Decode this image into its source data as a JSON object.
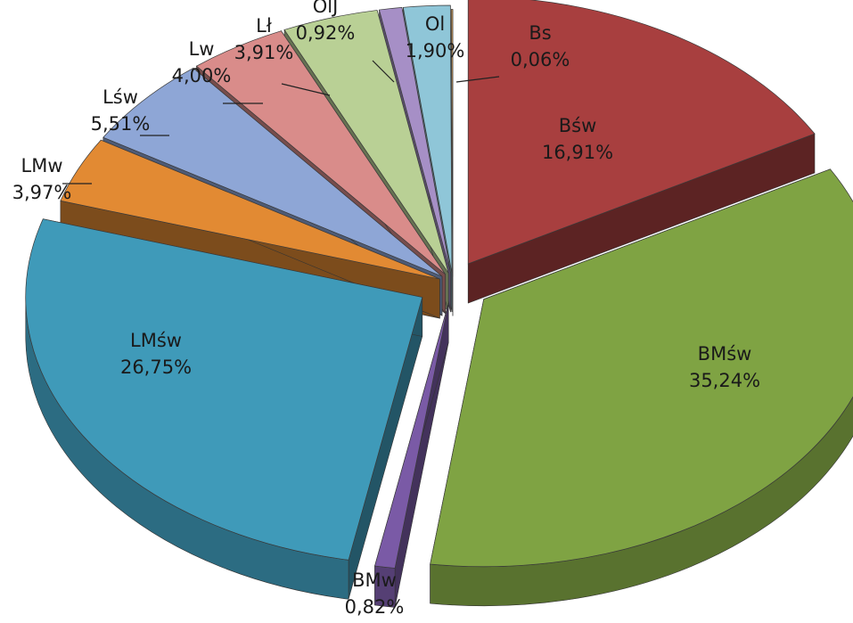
{
  "chart_data": {
    "type": "pie",
    "style": "3d-exploded",
    "legend": "none",
    "slices": [
      {
        "name": "Bśw",
        "value": 16.91,
        "value_label": "16,91%",
        "color": "#a83f3f"
      },
      {
        "name": "BMśw",
        "value": 35.24,
        "value_label": "35,24%",
        "color": "#7fa343"
      },
      {
        "name": "BMw",
        "value": 0.82,
        "value_label": "0,82%",
        "color": "#7a5aa6"
      },
      {
        "name": "LMśw",
        "value": 26.75,
        "value_label": "26,75%",
        "color": "#3f9ab9"
      },
      {
        "name": "LMw",
        "value": 3.97,
        "value_label": "3,97%",
        "color": "#e28a33"
      },
      {
        "name": "Lśw",
        "value": 5.51,
        "value_label": "5,51%",
        "color": "#8ea6d6"
      },
      {
        "name": "Lw",
        "value": 4.0,
        "value_label": "4,00%",
        "color": "#d98c8a"
      },
      {
        "name": "Lł",
        "value": 3.91,
        "value_label": "3,91%",
        "color": "#b9d095"
      },
      {
        "name": "OlJ",
        "value": 0.92,
        "value_label": "0,92%",
        "color": "#a68fc6"
      },
      {
        "name": "Ol",
        "value": 1.9,
        "value_label": "1,90%",
        "color": "#8fc6d8"
      },
      {
        "name": "Bs",
        "value": 0.06,
        "value_label": "0,06%",
        "color": "#d9a35c"
      }
    ]
  }
}
